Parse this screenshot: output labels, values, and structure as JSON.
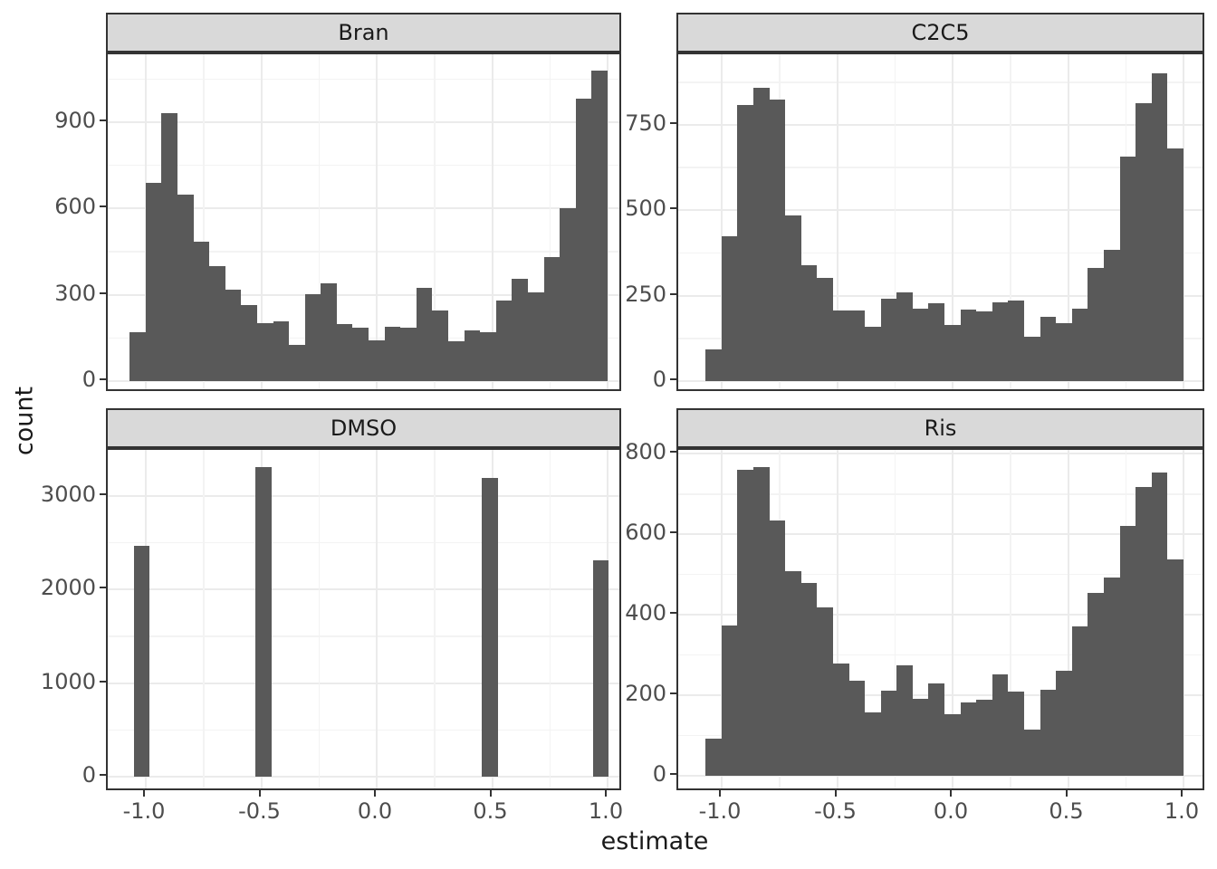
{
  "axis": {
    "x_title": "estimate",
    "y_title": "count",
    "x_ticks": [
      -1.0,
      -0.5,
      0.0,
      0.5,
      1.0
    ],
    "x_tick_labels": [
      "-1.0",
      "-0.5",
      "0.0",
      "0.5",
      "1.0"
    ],
    "x_minor_ticks": [
      -0.75,
      -0.25,
      0.25,
      0.75
    ]
  },
  "style": {
    "bar_color": "#595959",
    "panel_border": "#333333",
    "strip_fill": "#D9D9D9",
    "grid_major": "#EBEBEB",
    "grid_minor": "#F3F3F3",
    "axis_text_color": "#4D4D4D",
    "title_color": "#1A1A1A",
    "background": "#FFFFFF"
  },
  "chart_data": [
    {
      "type": "bar",
      "facet": "Bran",
      "title": "Bran",
      "xlabel": "estimate",
      "ylabel": "count",
      "bin_start": -1.07,
      "bin_width": 0.069,
      "values": [
        171,
        689,
        931,
        647,
        486,
        400,
        318,
        265,
        202,
        207,
        126,
        302,
        341,
        197,
        186,
        142,
        189,
        186,
        325,
        246,
        139,
        176,
        170,
        281,
        355,
        310,
        430,
        602,
        983,
        1081
      ],
      "y_ticks": [
        0,
        300,
        600,
        900
      ],
      "y_tick_labels": [
        "0",
        "300",
        "600",
        "900"
      ],
      "y_minor": [
        150,
        450,
        750,
        1050
      ],
      "xlim": [
        -1.155,
        1.155
      ],
      "grid": true,
      "legend": "none"
    },
    {
      "type": "bar",
      "facet": "C2C5",
      "title": "C2C5",
      "xlabel": "estimate",
      "ylabel": "count",
      "bin_start": -1.07,
      "bin_width": 0.069,
      "values": [
        93,
        424,
        808,
        860,
        824,
        485,
        338,
        303,
        207,
        207,
        158,
        240,
        260,
        213,
        228,
        165,
        209,
        204,
        231,
        235,
        130,
        187,
        169,
        211,
        332,
        384,
        656,
        814,
        902,
        680
      ],
      "y_ticks": [
        0,
        250,
        500,
        750
      ],
      "y_tick_labels": [
        "0",
        "250",
        "500",
        "750"
      ],
      "y_minor": [
        125,
        375,
        625,
        875
      ],
      "xlim": [
        -1.155,
        1.155
      ],
      "grid": true,
      "legend": "none"
    },
    {
      "type": "bar",
      "facet": "DMSO",
      "title": "DMSO",
      "xlabel": "estimate",
      "ylabel": "count",
      "bin_width": 0.069,
      "bars": [
        {
          "estimate": -1.0,
          "count": 2470
        },
        {
          "estimate": -0.5,
          "count": 3310
        },
        {
          "estimate": 0.5,
          "count": 3190
        },
        {
          "estimate": 1.0,
          "count": 2310
        }
      ],
      "y_ticks": [
        0,
        1000,
        2000,
        3000
      ],
      "y_tick_labels": [
        "0",
        "1000",
        "2000",
        "3000"
      ],
      "y_minor": [
        500,
        1500,
        2500,
        3500
      ],
      "xlim": [
        -1.155,
        1.155
      ],
      "grid": true,
      "legend": "none"
    },
    {
      "type": "bar",
      "facet": "Ris",
      "title": "Ris",
      "xlabel": "estimate",
      "ylabel": "count",
      "bin_start": -1.07,
      "bin_width": 0.069,
      "values": [
        92,
        373,
        760,
        768,
        634,
        508,
        480,
        419,
        279,
        236,
        158,
        212,
        274,
        191,
        229,
        152,
        182,
        190,
        251,
        210,
        115,
        214,
        260,
        372,
        455,
        493,
        620,
        718,
        754,
        537
      ],
      "y_ticks": [
        0,
        200,
        400,
        600,
        800
      ],
      "y_tick_labels": [
        "0",
        "200",
        "400",
        "600",
        "800"
      ],
      "y_minor": [
        100,
        300,
        500,
        700
      ],
      "xlim": [
        -1.155,
        1.155
      ],
      "grid": true,
      "legend": "none"
    }
  ]
}
